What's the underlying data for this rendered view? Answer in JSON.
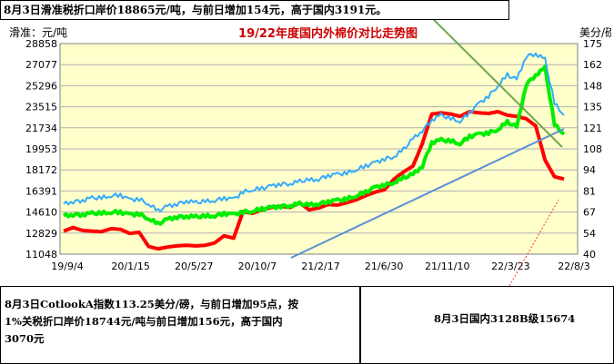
{
  "notes": {
    "top": "8月3日滑准税折口岸价18865元/吨，与前日增加154元，高于国内3191元。",
    "bottom_left_line1": "8月3日CotlookA指数113.25美分/磅，与前日增加95点，按",
    "bottom_left_line2": "1%关税折口岸价18744元/吨与前日增加156元，高于国内",
    "bottom_left_line3": "3070元",
    "bottom_right": "8月3日国内3128B级15674"
  },
  "colors": {
    "plot_bg": "#ffffcc",
    "grid": "#b0b0b0",
    "title": "#cc0000",
    "red_series": "#ff0000",
    "green_series": "#00ee00",
    "blue_series": "#3399ff",
    "trend_blue": "#5b8fd6",
    "trend_green": "#6fa84a",
    "trend_red_dashed": "#ff3333"
  },
  "chart_data": {
    "type": "line",
    "title": "19/22年度国内外棉价对比走势图",
    "ylabel_left": "滑准：元/吨",
    "ylabel_right": "美分/磅",
    "x_ticks": [
      "19/9/4",
      "20/1/15",
      "20/5/27",
      "20/10/7",
      "21/2/17",
      "21/6/30",
      "21/11/10",
      "22/3/23",
      "22/8/3"
    ],
    "left_y_ticks": [
      11048,
      12829,
      14610,
      16391,
      18172,
      19953,
      21734,
      23515,
      25296,
      27077,
      28858
    ],
    "right_y_ticks": [
      40,
      54,
      67,
      81,
      94,
      108,
      121,
      135,
      148,
      162,
      175
    ],
    "ylim_left": [
      11048,
      28858
    ],
    "ylim_right": [
      40,
      175
    ],
    "grid": true,
    "series": [
      {
        "axis": "left",
        "color": "#ff0000",
        "values": [
          13000,
          13300,
          13050,
          13000,
          12950,
          13200,
          13150,
          12800,
          12900,
          11700,
          11500,
          11650,
          11750,
          11800,
          11750,
          11800,
          12000,
          12600,
          12400,
          14650,
          14500,
          14800,
          15000,
          15100,
          15000,
          15400,
          14800,
          14950,
          15250,
          15200,
          15400,
          15650,
          16000,
          16300,
          16500,
          17400,
          18000,
          18500,
          20400,
          22900,
          23000,
          22900,
          22700,
          23100,
          23000,
          22950,
          23100,
          22800,
          22700,
          22500,
          21900,
          19000,
          17600,
          17400
        ]
      },
      {
        "axis": "left",
        "color": "#00ee00",
        "values": [
          14300,
          14400,
          14400,
          14500,
          14500,
          14600,
          14600,
          14400,
          14450,
          14050,
          13600,
          14000,
          14200,
          14250,
          14200,
          14250,
          14300,
          14500,
          14400,
          14600,
          14700,
          14850,
          15000,
          15100,
          15150,
          15300,
          15200,
          15300,
          15500,
          15600,
          15700,
          16000,
          16300,
          16700,
          16900,
          17100,
          17500,
          17800,
          18500,
          20500,
          20700,
          20600,
          20400,
          21000,
          21200,
          21300,
          21600,
          22200,
          21800,
          25400,
          26200,
          26800,
          22000,
          21200
        ]
      },
      {
        "axis": "left",
        "color": "#33aaff",
        "values": [
          15300,
          15500,
          15600,
          15800,
          15800,
          16000,
          16050,
          15650,
          15700,
          15300,
          14700,
          15100,
          15300,
          15550,
          15400,
          15500,
          15600,
          15800,
          15700,
          16300,
          16500,
          16600,
          16800,
          17000,
          17000,
          17200,
          17300,
          17400,
          17700,
          17800,
          17900,
          18200,
          18500,
          18800,
          19100,
          19300,
          19900,
          20800,
          21500,
          22400,
          22800,
          22500,
          22300,
          23000,
          23800,
          24400,
          25300,
          26200,
          25800,
          27800,
          28000,
          27500,
          23800,
          22800
        ]
      }
    ]
  }
}
